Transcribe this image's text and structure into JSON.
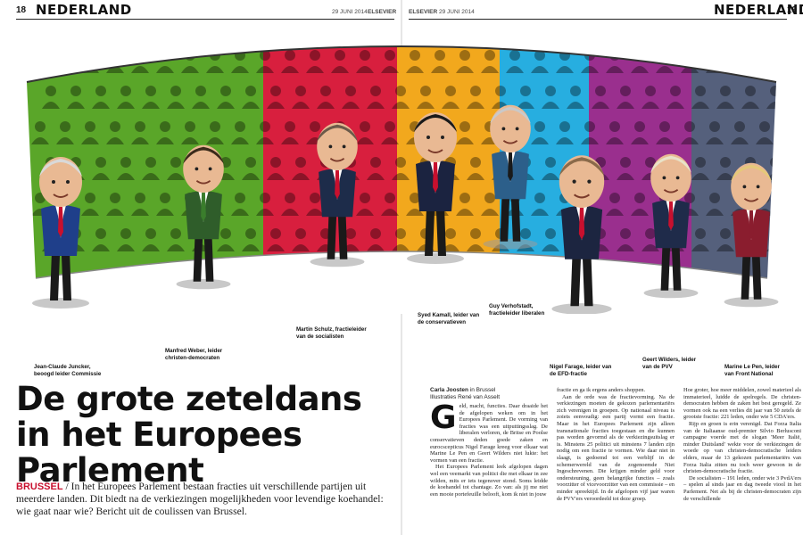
{
  "header": {
    "left_page": "18",
    "left_section": "NEDERLAND",
    "left_date": "29 JUNI 2014",
    "left_brand": "ELSEVIER",
    "right_brand": "ELSEVIER",
    "right_date": "29 JUNI 2014",
    "right_section": "NEDERLAND",
    "right_page": "19"
  },
  "captions": {
    "juncker": "Jean-Claude Juncker, beoogd leider Commissie",
    "weber": "Manfred Weber, leider christen-democraten",
    "schulz": "Martin Schulz, fractieleider van de socialisten",
    "kamall": "Syed Kamall, leider van de conservatieven",
    "verhofstadt": "Guy Verhofstadt, fractieleider liberalen",
    "farage": "Nigel Farage, leider van de EFD-fractie",
    "wilders": "Geert Wilders, leider van de PVV",
    "lepen": "Marine Le Pen, leider van Front National"
  },
  "colors": {
    "green": "#5aa629",
    "red": "#d81f3e",
    "yellow": "#f2a81d",
    "cyan": "#27aee0",
    "purple": "#9a2f8e",
    "slate": "#55607c",
    "kicker": "#c8102e"
  },
  "headline": "De grote zeteldans in het Europees Parlement",
  "lead": {
    "kicker": "BRUSSEL",
    "text": " / In het Europees Parlement bestaan fracties uit verschillende partijen uit meerdere landen. Dit biedt na de verkiezingen mogelijkheden voor levendige koehandel: wie gaat naar wie? Bericht uit de coulissen van Brussel."
  },
  "byline": {
    "author": "Carla Joosten",
    "location": " in Brussel",
    "illustrations": "Illustraties René van Asselt"
  },
  "columns": {
    "col1": {
      "dropcap": "G",
      "p1": "eld, macht, functies. Daar draaide het de afgelopen weken om in het Europees Parlement. De vorming van fracties was een uitputtingsslag. De liberalen verloren, de Britse en Poolse conservatieven deden goede zaken en eurocscepticus Nigel Farage kreeg voor elkaar wat Marine Le Pen en Geert Wilders niet lukte: het vormen van een fractie.",
      "p2": "Het Europees Parlement leek afgelopen dagen wel een veemarkt van politici die met elkaar in zee wilden, mits er iets tegenover stond. Soms leidde de koehandel tot chantage. Zo van: als jij me niet een mooie portefeuille belooft, kom ik niet in jouw"
    },
    "col2": {
      "p1": "fractie en ga ik ergens anders shoppen.",
      "p2": "Aan de orde was de fractievorming. Na de verkiezingen moeten de gekozen parlementariërs zich verenigen in groepen. Op nationaal niveau is zoiets eenvoudig: een partij vormt een fractie. Maar in het Europees Parlement zijn alleen transnationale fracties toegestaan en die kunnen pas worden gevormd als de verkiezingsuitslag er is. Minstens 25 politici uit minstens 7 landen zijn nodig om een fractie te vormen. Wie daar niet in slaagt, is gedoemd tot een verblijf in de schemerwereld van de zogenoemde Niet Ingeschrevenen. Die krijgen minder geld voor ondersteuning, geen belangrijke functies – zoals voorzitter of vicevoorzitter van een commissie – en minder spreektijd. In de afgelopen vijf jaar waren de PVV'ers veroordeeld tot deze groep."
    },
    "col3": {
      "p1": "Hoe groter, hoe meer middelen, zowel materieel als immaterieel, luidde de spelregels. De christen-democraten hebben de zaken het best geregeld. Ze vormen ook na een verlies dit jaar van 50 zetels de grootste fractie: 221 leden, onder wie 5 CDA'ers.",
      "p2": "Rijp en groen is erin verenigd. Dat Forza Italia van de Italiaanse oud-premier Silvio Berlusconi campagne voerde met de slogan 'Meer Italië, minder Duitsland' wekte voor de verkiezingen de woede op van christen-democratische leiders elders, maar de 13 gekozen parlementariërs van Forza Italia zitten nu toch weer gewoon in de christen-democratische fractie.",
      "p3": "De socialisten – 191 leden, onder wie 3 PvdA'ers – spelen al sinds jaar en dag tweede viool in het Parlement. Net als bij de christen-democraten zijn de verschillende"
    }
  }
}
